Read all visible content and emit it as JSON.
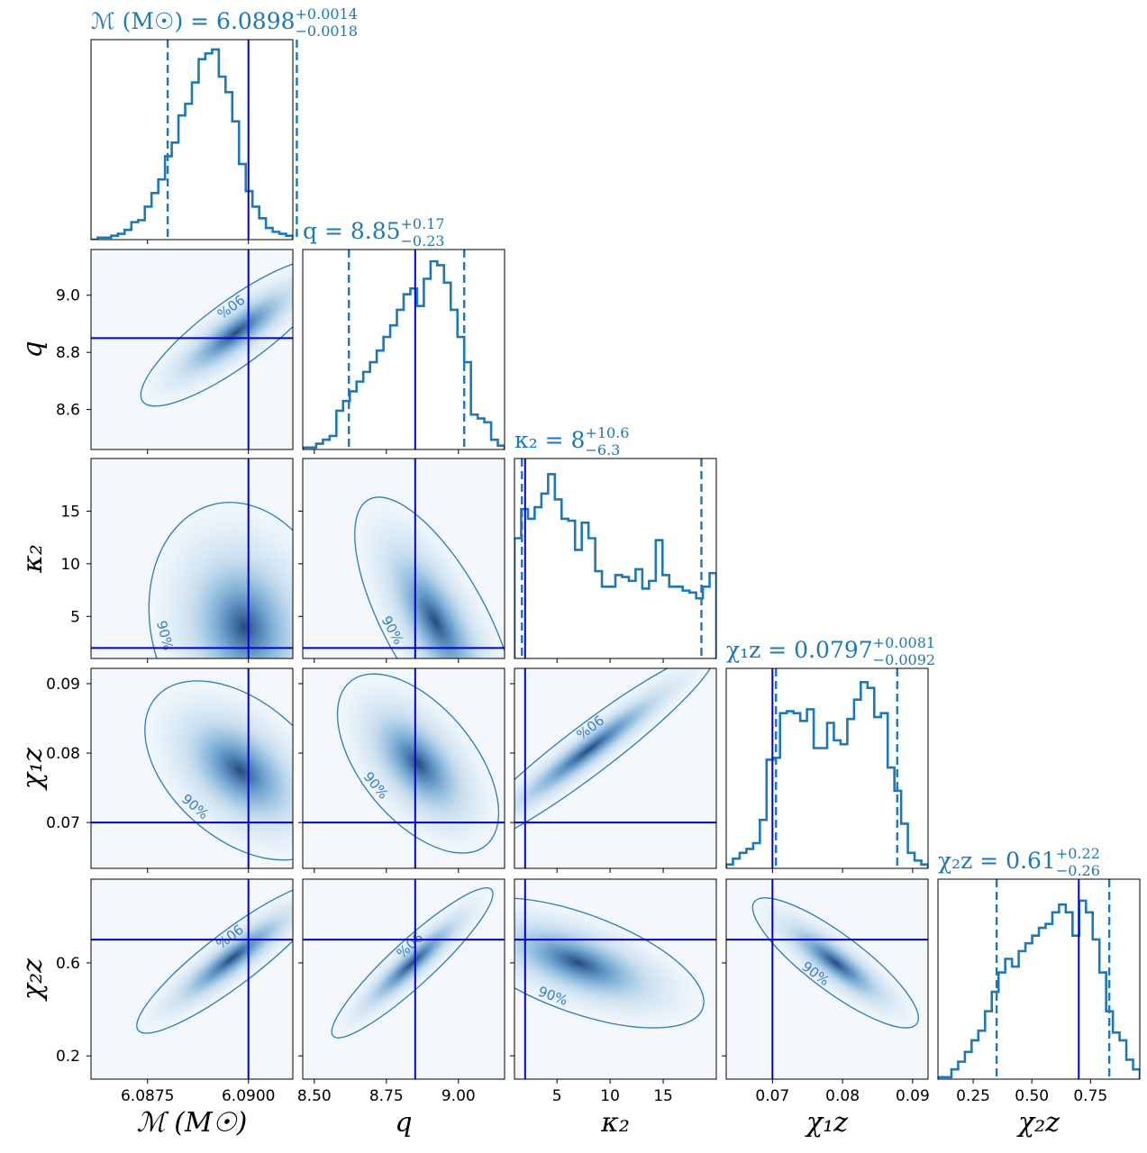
{
  "chart_data": {
    "type": "corner",
    "colors": {
      "posterior": "#1f77b4",
      "truth": "#0000cc",
      "density": "#08519c",
      "contour": "#2b7bba"
    },
    "contour_level_label": "90%",
    "parameters": [
      {
        "key": "mc",
        "label": "ℳ (M☉)",
        "range": [
          6.0861,
          6.0911
        ],
        "ticks": [
          6.0875,
          6.09
        ],
        "tick_labels": [
          "6.0875",
          "6.0900"
        ],
        "truth": 6.09,
        "median": 6.0898,
        "lower": 6.088,
        "upper": 6.0912,
        "title_name": "ℳ (M☉)",
        "title_value": "6.0898",
        "title_plus": "+0.0014",
        "title_minus": "−0.0018",
        "hist": [
          0,
          0.01,
          0.01,
          0.02,
          0.03,
          0.05,
          0.09,
          0.1,
          0.17,
          0.24,
          0.31,
          0.43,
          0.5,
          0.64,
          0.7,
          0.81,
          0.93,
          0.96,
          0.98,
          0.84,
          0.76,
          0.61,
          0.39,
          0.25,
          0.17,
          0.11,
          0.06,
          0.04,
          0.03,
          0.02
        ]
      },
      {
        "key": "q",
        "label": "q",
        "range": [
          8.46,
          9.16
        ],
        "ticks": [
          8.5,
          8.75,
          9.0
        ],
        "tick_labels": [
          "8.50",
          "8.75",
          "9.00"
        ],
        "truth": 8.85,
        "median": 8.85,
        "lower": 8.62,
        "upper": 9.02,
        "title_name": "q",
        "title_value": "8.85",
        "title_plus": "+0.17",
        "title_minus": "−0.23",
        "hist": [
          0.01,
          0.01,
          0.03,
          0.05,
          0.07,
          0.2,
          0.25,
          0.3,
          0.35,
          0.4,
          0.45,
          0.51,
          0.58,
          0.64,
          0.72,
          0.8,
          0.83,
          0.74,
          0.88,
          0.97,
          0.95,
          0.86,
          0.72,
          0.58,
          0.45,
          0.18,
          0.16,
          0.14,
          0.05,
          0.02
        ]
      },
      {
        "key": "kappa2",
        "label": "κ₂",
        "range": [
          1,
          20
        ],
        "ticks": [
          5,
          10,
          15
        ],
        "tick_labels": [
          "5",
          "10",
          "15"
        ],
        "truth": 2,
        "median": 8,
        "lower": 1.7,
        "upper": 18.6,
        "title_name": "κ₂",
        "title_value": "8",
        "title_plus": "+10.6",
        "title_minus": "−6.3",
        "hist": [
          0.62,
          0.77,
          0.72,
          0.78,
          0.85,
          0.95,
          0.82,
          0.72,
          0.71,
          0.56,
          0.7,
          0.62,
          0.45,
          0.37,
          0.37,
          0.43,
          0.42,
          0.4,
          0.46,
          0.36,
          0.4,
          0.61,
          0.43,
          0.37,
          0.37,
          0.35,
          0.34,
          0.31,
          0.37,
          0.44
        ]
      },
      {
        "key": "chi1z",
        "label": "χ₁z",
        "range": [
          0.0634,
          0.0922
        ],
        "ticks": [
          0.07,
          0.08,
          0.09
        ],
        "tick_labels": [
          "0.07",
          "0.08",
          "0.09"
        ],
        "truth": 0.07,
        "median": 0.0797,
        "lower": 0.0705,
        "upper": 0.0878,
        "title_name": "χ₁z",
        "title_value": "0.0797",
        "title_plus": "+0.0081",
        "title_minus": "−0.0092",
        "hist": [
          0.02,
          0.05,
          0.08,
          0.1,
          0.13,
          0.25,
          0.56,
          0.57,
          0.8,
          0.81,
          0.8,
          0.76,
          0.82,
          0.62,
          0.62,
          0.75,
          0.66,
          0.64,
          0.77,
          0.87,
          0.96,
          0.93,
          0.78,
          0.8,
          0.52,
          0.4,
          0.23,
          0.08,
          0.04,
          0.02
        ]
      },
      {
        "key": "chi2z",
        "label": "χ₂z",
        "range": [
          0.1,
          0.96
        ],
        "ticks": [
          0.25,
          0.5,
          0.75
        ],
        "tick_labels": [
          "0.25",
          "0.50",
          "0.75"
        ],
        "truth": 0.7,
        "median": 0.61,
        "lower": 0.35,
        "upper": 0.83,
        "title_name": "χ₂z",
        "title_value": "0.61",
        "title_plus": "+0.22",
        "title_minus": "−0.26",
        "hist": [
          0.01,
          0.01,
          0.05,
          0.09,
          0.14,
          0.2,
          0.25,
          0.35,
          0.45,
          0.55,
          0.62,
          0.58,
          0.66,
          0.7,
          0.74,
          0.78,
          0.8,
          0.86,
          0.9,
          0.86,
          0.74,
          0.92,
          0.86,
          0.72,
          0.55,
          0.35,
          0.24,
          0.2,
          0.1,
          0.05
        ]
      }
    ],
    "side_tick_labels": {
      "q": [
        "8.6",
        "8.8",
        "9.0"
      ],
      "kappa2": [
        "5",
        "10",
        "15"
      ],
      "chi1z": [
        "0.07",
        "0.08",
        "0.09"
      ],
      "chi2z": [
        "0.2",
        "0.6"
      ]
    },
    "side_ticks": {
      "q": [
        8.6,
        8.8,
        9.0
      ],
      "kappa2": [
        5,
        10,
        15
      ],
      "chi1z": [
        0.07,
        0.08,
        0.09
      ],
      "chi2z": [
        0.2,
        0.6
      ]
    },
    "pairs": [
      {
        "x": "mc",
        "y": "q",
        "center": [
          6.0897,
          8.87
        ],
        "spread": [
          0.0011,
          0.12
        ],
        "rho": 0.85
      },
      {
        "x": "mc",
        "y": "kappa2",
        "center": [
          6.0899,
          4
        ],
        "spread": [
          0.0011,
          5.5
        ],
        "rho": -0.15
      },
      {
        "x": "q",
        "y": "kappa2",
        "center": [
          8.92,
          4.5
        ],
        "spread": [
          0.13,
          5.5
        ],
        "rho": -0.7
      },
      {
        "x": "mc",
        "y": "chi1z",
        "center": [
          6.0898,
          0.0775
        ],
        "spread": [
          0.0011,
          0.006
        ],
        "rho": -0.45
      },
      {
        "x": "q",
        "y": "chi1z",
        "center": [
          8.86,
          0.0785
        ],
        "spread": [
          0.13,
          0.006
        ],
        "rho": -0.55
      },
      {
        "x": "kappa2",
        "y": "chi1z",
        "center": [
          8,
          0.0805
        ],
        "spread": [
          5.5,
          0.0065
        ],
        "rho": 0.95
      },
      {
        "x": "mc",
        "y": "chi2z",
        "center": [
          6.0896,
          0.62
        ],
        "spread": [
          0.0011,
          0.15
        ],
        "rho": 0.9
      },
      {
        "x": "q",
        "y": "chi2z",
        "center": [
          8.84,
          0.6
        ],
        "spread": [
          0.13,
          0.15
        ],
        "rho": 0.92
      },
      {
        "x": "kappa2",
        "y": "chi2z",
        "center": [
          7,
          0.6
        ],
        "spread": [
          5.5,
          0.13
        ],
        "rho": -0.6
      },
      {
        "x": "chi1z",
        "y": "chi2z",
        "center": [
          0.079,
          0.6
        ],
        "spread": [
          0.0055,
          0.13
        ],
        "rho": -0.85
      }
    ]
  }
}
